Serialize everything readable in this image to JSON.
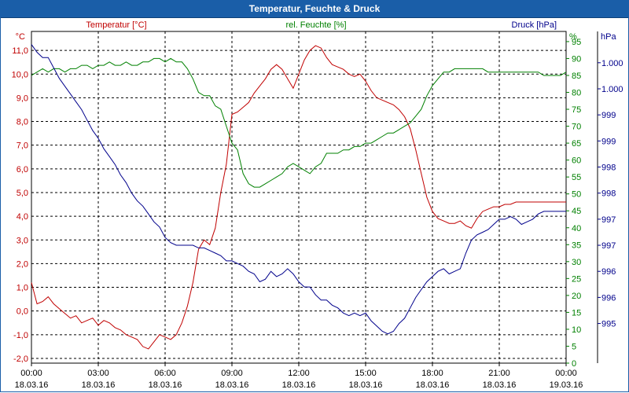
{
  "window": {
    "title": "Temperatur, Feuchte & Druck"
  },
  "colors": {
    "temperature": "#c00000",
    "humidity": "#008000",
    "pressure": "#00008b",
    "titlebar": "#1a5ea8"
  },
  "chart_data": {
    "type": "line",
    "title": "Temperatur, Feuchte & Druck",
    "grid": true,
    "x_ticks": [
      {
        "time": "00:00",
        "date": "18.03.16"
      },
      {
        "time": "03:00",
        "date": "18.03.16"
      },
      {
        "time": "06:00",
        "date": "18.03.16"
      },
      {
        "time": "09:00",
        "date": "18.03.16"
      },
      {
        "time": "12:00",
        "date": "18.03.16"
      },
      {
        "time": "15:00",
        "date": "18.03.16"
      },
      {
        "time": "18:00",
        "date": "18.03.16"
      },
      {
        "time": "21:00",
        "date": "18.03.16"
      },
      {
        "time": "00:00",
        "date": "19.03.16"
      }
    ],
    "x_range_hours": [
      0,
      24
    ],
    "axes": {
      "temperature": {
        "label": "Temperatur [°C]",
        "unit": "°C",
        "range": [
          -2.2,
          11.8
        ],
        "ticks": [
          "11,0",
          "10,0",
          "9,0",
          "8,0",
          "7,0",
          "6,0",
          "5,0",
          "4,0",
          "3,0",
          "2,0",
          "1,0",
          "0,0",
          "-1,0",
          "-2,0"
        ],
        "tick_values": [
          11,
          10,
          9,
          8,
          7,
          6,
          5,
          4,
          3,
          2,
          1,
          0,
          -1,
          -2
        ]
      },
      "humidity": {
        "label": "rel. Feuchte [%]",
        "unit": "%",
        "range": [
          0,
          98
        ],
        "ticks": [
          "95",
          "90",
          "85",
          "80",
          "75",
          "70",
          "65",
          "60",
          "55",
          "50",
          "45",
          "40",
          "35",
          "30",
          "25",
          "20",
          "15",
          "10",
          "5",
          "0"
        ],
        "tick_values": [
          95,
          90,
          85,
          80,
          75,
          70,
          65,
          60,
          55,
          50,
          45,
          40,
          35,
          30,
          25,
          20,
          15,
          10,
          5,
          0
        ]
      },
      "pressure": {
        "label": "Druck [hPa]",
        "unit": "hPa",
        "range": [
          994.74,
          1001.1
        ],
        "ticks": [
          "1.000",
          "1.000",
          "999",
          "999",
          "998",
          "998",
          "997",
          "997",
          "996",
          "996",
          "995"
        ],
        "tick_values": [
          1000.5,
          1000,
          999.5,
          999,
          998.5,
          998,
          997.5,
          997,
          996.5,
          996,
          995.5
        ]
      }
    },
    "series": [
      {
        "name": "Temperatur [°C]",
        "axis": "temperature",
        "color": "#c00000",
        "x": [
          0,
          0.25,
          0.5,
          0.75,
          1,
          1.25,
          1.5,
          1.75,
          2,
          2.25,
          2.5,
          2.75,
          3,
          3.25,
          3.5,
          3.75,
          4,
          4.25,
          4.5,
          4.75,
          5,
          5.25,
          5.5,
          5.75,
          6,
          6.25,
          6.5,
          6.75,
          7,
          7.25,
          7.5,
          7.75,
          8,
          8.25,
          8.5,
          8.75,
          9,
          9.25,
          9.5,
          9.75,
          10,
          10.25,
          10.5,
          10.75,
          11,
          11.25,
          11.5,
          11.75,
          12,
          12.25,
          12.5,
          12.75,
          13,
          13.25,
          13.5,
          13.75,
          14,
          14.25,
          14.5,
          14.75,
          15,
          15.25,
          15.5,
          15.75,
          16,
          16.25,
          16.5,
          16.75,
          17,
          17.25,
          17.5,
          17.75,
          18,
          18.25,
          18.5,
          18.75,
          19,
          19.25,
          19.5,
          19.75,
          20,
          20.25,
          20.5,
          20.75,
          21,
          21.25,
          21.5,
          21.75,
          22,
          22.25,
          22.5,
          22.75,
          23,
          23.25,
          23.5,
          23.75,
          24
        ],
        "values": [
          1.2,
          0.3,
          0.4,
          0.6,
          0.3,
          0.1,
          -0.1,
          -0.3,
          -0.2,
          -0.5,
          -0.4,
          -0.3,
          -0.6,
          -0.4,
          -0.5,
          -0.7,
          -0.8,
          -1.0,
          -1.1,
          -1.2,
          -1.5,
          -1.6,
          -1.3,
          -1.0,
          -1.1,
          -1.2,
          -1.0,
          -0.5,
          0.2,
          1.2,
          2.6,
          3.0,
          2.8,
          3.5,
          5.0,
          6.2,
          8.3,
          8.4,
          8.6,
          8.8,
          9.2,
          9.5,
          9.8,
          10.2,
          10.4,
          10.2,
          9.8,
          9.4,
          10.0,
          10.6,
          11.0,
          11.2,
          11.1,
          10.7,
          10.4,
          10.3,
          10.2,
          10.0,
          9.9,
          10.0,
          9.7,
          9.3,
          9.0,
          8.9,
          8.8,
          8.7,
          8.5,
          8.2,
          7.7,
          6.8,
          5.8,
          4.8,
          4.2,
          3.9,
          3.8,
          3.7,
          3.7,
          3.8,
          3.6,
          3.5,
          3.9,
          4.2,
          4.3,
          4.4,
          4.4,
          4.5,
          4.5,
          4.6,
          4.6,
          4.6,
          4.6,
          4.6,
          4.6,
          4.6,
          4.6,
          4.6,
          4.6
        ]
      },
      {
        "name": "rel. Feuchte [%]",
        "axis": "humidity",
        "color": "#008000",
        "x": [
          0,
          0.25,
          0.5,
          0.75,
          1,
          1.25,
          1.5,
          1.75,
          2,
          2.25,
          2.5,
          2.75,
          3,
          3.25,
          3.5,
          3.75,
          4,
          4.25,
          4.5,
          4.75,
          5,
          5.25,
          5.5,
          5.75,
          6,
          6.25,
          6.5,
          6.75,
          7,
          7.25,
          7.5,
          7.75,
          8,
          8.25,
          8.5,
          8.75,
          9,
          9.25,
          9.5,
          9.75,
          10,
          10.25,
          10.5,
          10.75,
          11,
          11.25,
          11.5,
          11.75,
          12,
          12.25,
          12.5,
          12.75,
          13,
          13.25,
          13.5,
          13.75,
          14,
          14.25,
          14.5,
          14.75,
          15,
          15.25,
          15.5,
          15.75,
          16,
          16.25,
          16.5,
          16.75,
          17,
          17.25,
          17.5,
          17.75,
          18,
          18.25,
          18.5,
          18.75,
          19,
          19.25,
          19.5,
          19.75,
          20,
          20.25,
          20.5,
          20.75,
          21,
          21.25,
          21.5,
          21.75,
          22,
          22.25,
          22.5,
          22.75,
          23,
          23.25,
          23.5,
          23.75,
          24
        ],
        "values": [
          85,
          86,
          87,
          86,
          87,
          87,
          86,
          87,
          87,
          88,
          88,
          87,
          88,
          88,
          89,
          88,
          88,
          89,
          88,
          88,
          89,
          89,
          90,
          90,
          89,
          90,
          89,
          89,
          87,
          84,
          80,
          79,
          79,
          76,
          75,
          70,
          65,
          63,
          56,
          53,
          52,
          52,
          53,
          54,
          55,
          56,
          58,
          59,
          58,
          57,
          56,
          58,
          59,
          62,
          62,
          62,
          63,
          63,
          64,
          64,
          65,
          65,
          66,
          67,
          68,
          68,
          69,
          70,
          71,
          73,
          75,
          79,
          82,
          84,
          86,
          86,
          87,
          87,
          87,
          87,
          87,
          87,
          86,
          86,
          86,
          86,
          86,
          86,
          86,
          86,
          86,
          86,
          85,
          85,
          85,
          85,
          86
        ]
      },
      {
        "name": "Druck [hPa]",
        "axis": "pressure",
        "color": "#00008b",
        "x": [
          0,
          0.25,
          0.5,
          0.75,
          1,
          1.25,
          1.5,
          1.75,
          2,
          2.25,
          2.5,
          2.75,
          3,
          3.25,
          3.5,
          3.75,
          4,
          4.25,
          4.5,
          4.75,
          5,
          5.25,
          5.5,
          5.75,
          6,
          6.25,
          6.5,
          6.75,
          7,
          7.25,
          7.5,
          7.75,
          8,
          8.25,
          8.5,
          8.75,
          9,
          9.25,
          9.5,
          9.75,
          10,
          10.25,
          10.5,
          10.75,
          11,
          11.25,
          11.5,
          11.75,
          12,
          12.25,
          12.5,
          12.75,
          13,
          13.25,
          13.5,
          13.75,
          14,
          14.25,
          14.5,
          14.75,
          15,
          15.25,
          15.5,
          15.75,
          16,
          16.25,
          16.5,
          16.75,
          17,
          17.25,
          17.5,
          17.75,
          18,
          18.25,
          18.5,
          18.75,
          19,
          19.25,
          19.5,
          19.75,
          20,
          20.25,
          20.5,
          20.75,
          21,
          21.25,
          21.5,
          21.75,
          22,
          22.25,
          22.5,
          22.75,
          23,
          23.25,
          23.5,
          23.75,
          24
        ],
        "values": [
          1000.85,
          1000.7,
          1000.6,
          1000.6,
          1000.4,
          1000.2,
          1000.05,
          999.9,
          999.75,
          999.6,
          999.4,
          999.2,
          999.05,
          998.85,
          998.7,
          998.55,
          998.35,
          998.2,
          998.0,
          997.85,
          997.75,
          997.6,
          997.45,
          997.35,
          997.15,
          997.05,
          997.0,
          997.0,
          997.0,
          997.0,
          996.95,
          996.95,
          996.9,
          996.85,
          996.8,
          996.7,
          996.7,
          996.65,
          996.6,
          996.5,
          996.45,
          996.3,
          996.35,
          996.5,
          996.4,
          996.45,
          996.55,
          996.45,
          996.3,
          996.2,
          996.2,
          996.05,
          995.95,
          995.95,
          995.85,
          995.8,
          995.7,
          995.65,
          995.7,
          995.65,
          995.7,
          995.55,
          995.45,
          995.35,
          995.3,
          995.35,
          995.5,
          995.6,
          995.8,
          996.0,
          996.15,
          996.3,
          996.4,
          996.5,
          996.55,
          996.45,
          996.5,
          996.55,
          996.85,
          997.1,
          997.2,
          997.25,
          997.3,
          997.4,
          997.5,
          997.5,
          997.55,
          997.5,
          997.4,
          997.45,
          997.5,
          997.6,
          997.65,
          997.65,
          997.65,
          997.65,
          997.65
        ]
      }
    ]
  }
}
